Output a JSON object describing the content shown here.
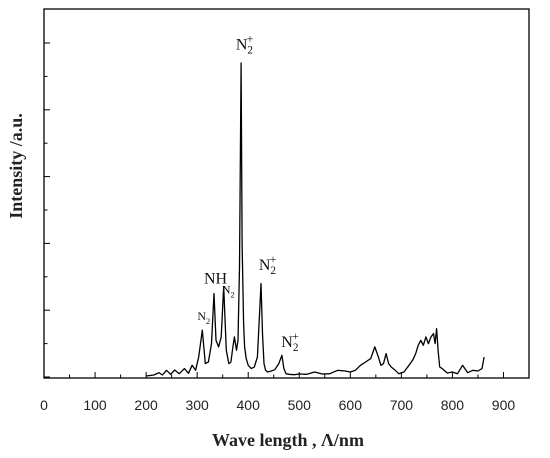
{
  "chart_data": {
    "type": "line",
    "title": "",
    "xlabel": "Wave length , Λ/nm",
    "ylabel": "Intensity /a.u.",
    "xlim": [
      0,
      950
    ],
    "ylim": [
      0,
      100
    ],
    "xticks": [
      0,
      100,
      200,
      300,
      400,
      500,
      600,
      700,
      800,
      900
    ],
    "xtick_labels": [
      "0",
      "100",
      "200",
      "300",
      "400",
      "500",
      "600",
      "700",
      "800",
      "900"
    ],
    "yticks": [
      0,
      20,
      40,
      60,
      80
    ],
    "ytick_labels": [],
    "grid": false,
    "legend": "none",
    "series": [
      {
        "color": "#000000",
        "x": [
          200,
          215,
          225,
          232,
          240,
          248,
          256,
          265,
          275,
          283,
          290,
          297,
          303,
          310,
          316,
          322,
          328,
          333,
          337,
          342,
          347,
          352,
          357,
          362,
          366,
          370,
          373,
          377,
          380,
          383,
          386,
          388,
          391,
          393,
          396,
          400,
          406,
          412,
          418,
          422,
          425,
          428,
          431,
          434,
          438,
          445,
          452,
          460,
          466,
          470,
          474,
          480,
          490,
          500,
          515,
          530,
          545,
          560,
          575,
          590,
          600,
          610,
          620,
          630,
          640,
          648,
          655,
          660,
          665,
          670,
          675,
          680,
          688,
          695,
          705,
          715,
          722,
          728,
          733,
          738,
          743,
          748,
          753,
          758,
          763,
          766,
          769,
          772,
          775,
          780,
          790,
          800,
          810,
          820,
          830,
          840,
          850,
          858,
          862
        ],
        "y": [
          0.3,
          0.6,
          1.3,
          0.6,
          2,
          0.8,
          2.1,
          1,
          2.5,
          1.1,
          3.5,
          2,
          6,
          14,
          4,
          4.5,
          10,
          25,
          11,
          9,
          12,
          27,
          8,
          4,
          4.5,
          9,
          12,
          8,
          11,
          33,
          94,
          40,
          16,
          9,
          5.5,
          3.5,
          2.5,
          3,
          6,
          18,
          28,
          13,
          4,
          2,
          1.5,
          1.8,
          2.2,
          4,
          6.5,
          2.5,
          1,
          0.8,
          0.7,
          0.9,
          0.8,
          1.5,
          0.9,
          1,
          2,
          1.8,
          1.5,
          2,
          3.5,
          4.5,
          5.5,
          9,
          6,
          3.5,
          4,
          7,
          4,
          3,
          2,
          1,
          1.5,
          3.5,
          5,
          7,
          9.5,
          11,
          9.5,
          12,
          10,
          12,
          13,
          10,
          14.5,
          8,
          3,
          2.5,
          1.2,
          1.5,
          1,
          3.5,
          1.3,
          2,
          1.8,
          2.5,
          6
        ]
      }
    ],
    "annotations": [
      {
        "text": "N₂",
        "x": 313,
        "y": 17
      },
      {
        "text": "NH",
        "x": 336,
        "y": 28
      },
      {
        "text": "N₂",
        "x": 361,
        "y": 25
      },
      {
        "text": "N₂⁺",
        "x": 393,
        "y": 98
      },
      {
        "text": "N₂⁺",
        "x": 438,
        "y": 32
      },
      {
        "text": "N₂⁺",
        "x": 482,
        "y": 9
      }
    ]
  }
}
